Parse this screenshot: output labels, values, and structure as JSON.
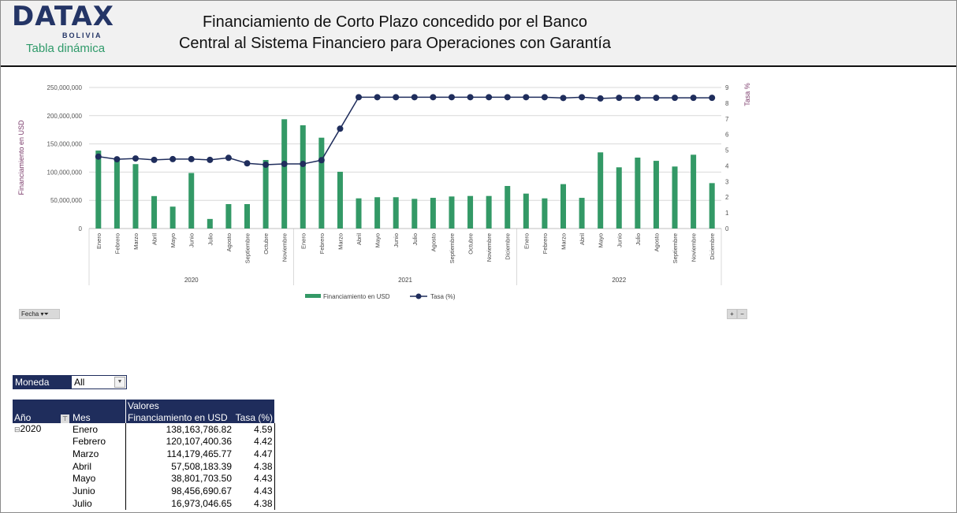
{
  "header": {
    "logo": "DATAX",
    "logo_sub": "BOLIVIA",
    "subtitle": "Tabla dinámica",
    "title_line1": "Financiamiento de Corto Plazo concedido por el Banco",
    "title_line2": "Central al Sistema Financiero para Operaciones con Garantía"
  },
  "chart_data": {
    "type": "bar+line",
    "ylabel": "Financiamiento  en USD",
    "y2label": "Tasa %",
    "ylim": [
      0,
      250000000
    ],
    "y2lim": [
      0,
      9
    ],
    "yticks": [
      "0",
      "50,000,000",
      "100,000,000",
      "150,000,000",
      "200,000,000",
      "250,000,000"
    ],
    "y2ticks": [
      "0",
      "1",
      "2",
      "3",
      "4",
      "5",
      "6",
      "7",
      "8",
      "9"
    ],
    "groups": [
      {
        "year": "2020",
        "months": [
          "Enero",
          "Febrero",
          "Marzo",
          "Abril",
          "Mayo",
          "Junio",
          "Julio",
          "Agosto",
          "Septiembre",
          "Octubre",
          "Noviembre"
        ]
      },
      {
        "year": "2021",
        "months": [
          "Enero",
          "Febrero",
          "Marzo",
          "Abril",
          "Mayo",
          "Junio",
          "Julio",
          "Agosto",
          "Septiembre",
          "Octubre",
          "Noviembre",
          "Diciembre"
        ]
      },
      {
        "year": "2022",
        "months": [
          "Enero",
          "Febrero",
          "Marzo",
          "Abril",
          "Mayo",
          "Junio",
          "Julio",
          "Agosto",
          "Septiembre",
          "Noviembre",
          "Diciembre"
        ]
      }
    ],
    "series": [
      {
        "name": "Financiamiento en USD",
        "type": "bar",
        "color": "#339966",
        "values": [
          138163786.82,
          120107400.36,
          114179465.77,
          57508183.39,
          38801703.5,
          98456690.67,
          16973046.65,
          43300000,
          43300000,
          121500000,
          193700000,
          183000000,
          161000000,
          100600000,
          53500000,
          55500000,
          55500000,
          52600000,
          54400000,
          56800000,
          57700000,
          57700000,
          75400000,
          61900000,
          53500000,
          78700000,
          54400000,
          135000000,
          108500000,
          125700000,
          120000000,
          109900000,
          130800000,
          80500000
        ]
      },
      {
        "name": "Tasa (%)",
        "type": "line",
        "color": "#1f2d5c",
        "values": [
          4.59,
          4.42,
          4.47,
          4.38,
          4.43,
          4.43,
          4.38,
          4.51,
          4.16,
          4.07,
          4.12,
          4.12,
          4.36,
          6.37,
          8.38,
          8.38,
          8.38,
          8.38,
          8.38,
          8.38,
          8.38,
          8.38,
          8.38,
          8.38,
          8.38,
          8.33,
          8.38,
          8.3,
          8.34,
          8.34,
          8.34,
          8.34,
          8.34,
          8.34
        ]
      }
    ],
    "legend": "bottom",
    "grid": true
  },
  "controls": {
    "fecha": "Fecha",
    "plus": "+",
    "minus": "−"
  },
  "filter": {
    "label": "Moneda",
    "value": "All"
  },
  "pivot": {
    "header_valores": "Valores",
    "col_year": "Año",
    "col_month": "Mes",
    "col_fin": "Financiamiento en USD",
    "col_tasa": "Tasa (%)",
    "rows": [
      {
        "year": "2020",
        "month": "Enero",
        "fin": "138,163,786.82",
        "tasa": "4.59"
      },
      {
        "year": "",
        "month": "Febrero",
        "fin": "120,107,400.36",
        "tasa": "4.42"
      },
      {
        "year": "",
        "month": "Marzo",
        "fin": "114,179,465.77",
        "tasa": "4.47"
      },
      {
        "year": "",
        "month": "Abril",
        "fin": "57,508,183.39",
        "tasa": "4.38"
      },
      {
        "year": "",
        "month": "Mayo",
        "fin": "38,801,703.50",
        "tasa": "4.43"
      },
      {
        "year": "",
        "month": "Junio",
        "fin": "98,456,690.67",
        "tasa": "4.43"
      },
      {
        "year": "",
        "month": "Julio",
        "fin": "16,973,046.65",
        "tasa": "4.38"
      }
    ]
  }
}
